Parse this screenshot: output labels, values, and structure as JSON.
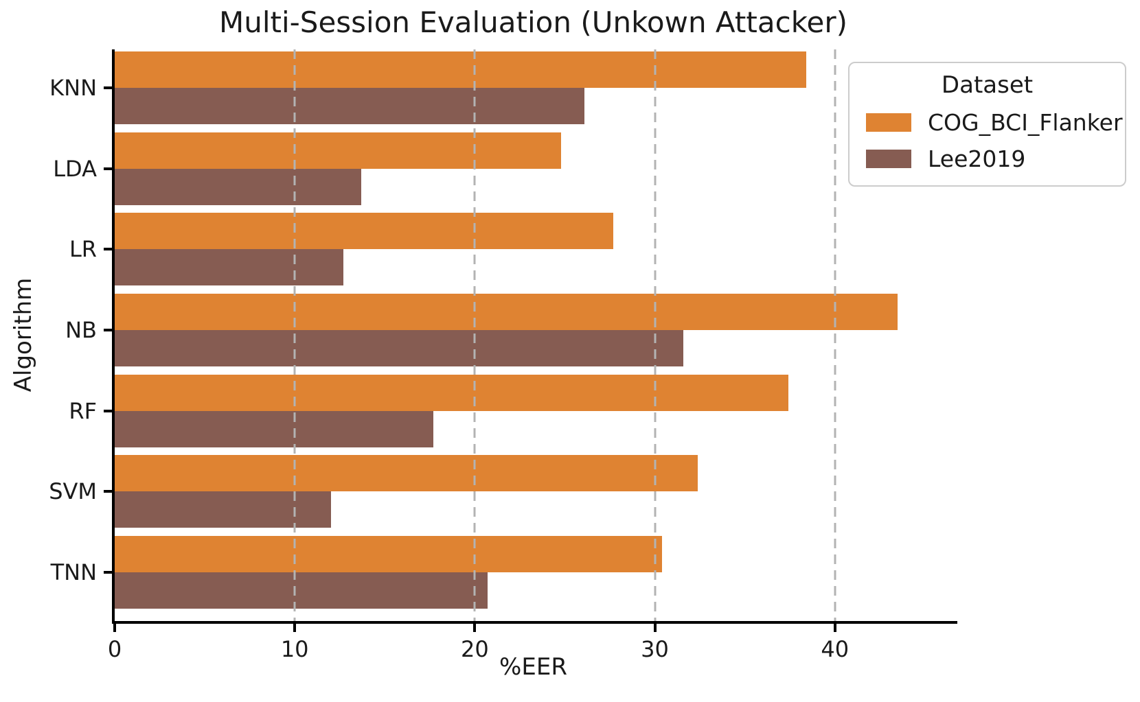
{
  "chart_data": {
    "type": "bar",
    "orientation": "horizontal",
    "title": "Multi-Session Evaluation (Unkown Attacker)",
    "xlabel": "%EER",
    "ylabel": "Algorithm",
    "categories": [
      "KNN",
      "LDA",
      "LR",
      "NB",
      "RF",
      "SVM",
      "TNN"
    ],
    "series": [
      {
        "name": "COG_BCI_Flanker",
        "color": "#df8332",
        "values": [
          38.4,
          24.8,
          27.7,
          43.5,
          37.4,
          32.4,
          30.4
        ]
      },
      {
        "name": "Lee2019",
        "color": "#865c52",
        "values": [
          26.1,
          13.7,
          12.7,
          31.6,
          17.7,
          12.0,
          20.7
        ]
      }
    ],
    "xlim": [
      0,
      46.8
    ],
    "xticks": [
      "0",
      "10",
      "20",
      "30",
      "40"
    ],
    "xtick_values": [
      0,
      10,
      20,
      30,
      40
    ],
    "gridlines": {
      "axis": "x",
      "values": [
        10,
        20,
        30,
        40
      ],
      "style": "dashed",
      "color": "#b3b3b3",
      "on_top_of_bars": true
    },
    "legend": {
      "title": "Dataset",
      "position": "upper-right",
      "entries": [
        "COG_BCI_Flanker",
        "Lee2019"
      ]
    }
  },
  "colors": {
    "background": "#ffffff",
    "axis": "#000000",
    "text": "#1a1a1a",
    "legend_border": "#cccccc",
    "gridline": "#b3b3b3"
  }
}
